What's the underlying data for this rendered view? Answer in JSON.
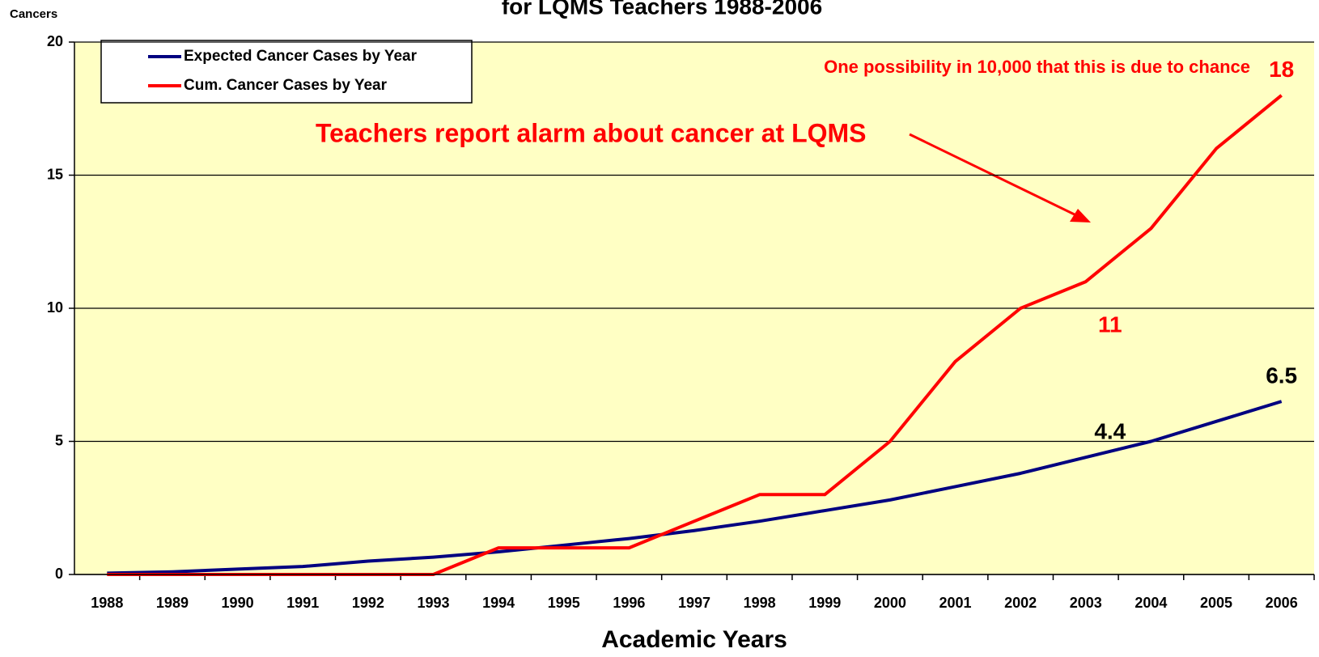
{
  "chart_data": {
    "type": "line",
    "title": "for LQMS Teachers 1988-2006",
    "y_label": "Cancers",
    "x_label": "Academic Years",
    "categories": [
      "1988",
      "1989",
      "1990",
      "1991",
      "1992",
      "1993",
      "1994",
      "1995",
      "1996",
      "1997",
      "1998",
      "1999",
      "2000",
      "2001",
      "2002",
      "2003",
      "2004",
      "2005",
      "2006"
    ],
    "series": [
      {
        "name": "Expected Cancer Cases by Year",
        "color": "#000080",
        "values": [
          0.05,
          0.1,
          0.2,
          0.3,
          0.5,
          0.65,
          0.85,
          1.1,
          1.35,
          1.65,
          2.0,
          2.4,
          2.8,
          3.3,
          3.8,
          4.4,
          5.0,
          5.75,
          6.5
        ],
        "value_labels": [
          null,
          null,
          null,
          null,
          null,
          null,
          null,
          null,
          null,
          null,
          null,
          null,
          null,
          null,
          null,
          "4.4",
          null,
          null,
          "6.5"
        ]
      },
      {
        "name": "Cum. Cancer Cases by Year",
        "color": "#ff0000",
        "values": [
          0,
          0,
          0,
          0,
          0,
          0,
          1,
          1,
          1,
          2,
          3,
          3,
          5,
          8,
          10,
          11,
          13,
          16,
          18
        ],
        "value_labels": [
          null,
          null,
          null,
          null,
          null,
          null,
          null,
          null,
          null,
          null,
          null,
          null,
          null,
          null,
          null,
          "11",
          null,
          null,
          "18"
        ]
      }
    ],
    "annotations": [
      "One possibility in 10,000 that this is due to chance",
      "Teachers report alarm about cancer at LQMS"
    ],
    "ylim": [
      0,
      20
    ],
    "yticks": [
      0,
      5,
      10,
      15,
      20
    ],
    "grid": true,
    "legend": "upper left"
  }
}
